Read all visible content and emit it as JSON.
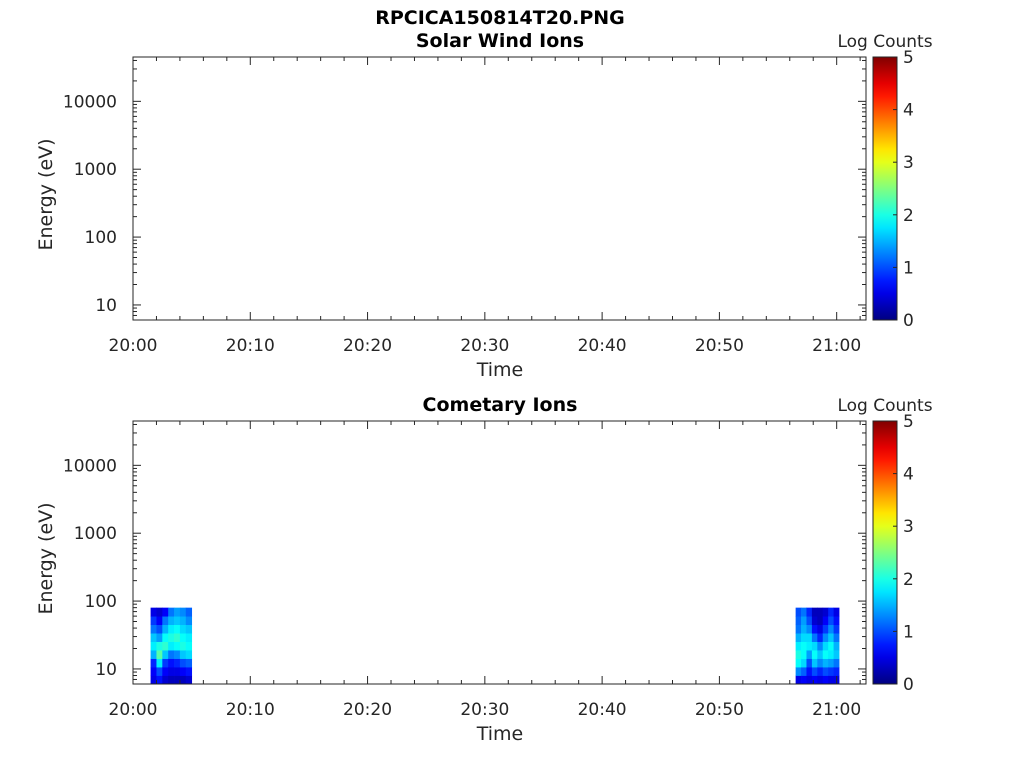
{
  "figure_title": "RPCICA150814T20.PNG",
  "colors": {
    "axis": "#262626",
    "jet_low": "#00008f",
    "jet_high": "#800000"
  },
  "chart_data": [
    {
      "type": "heatmap",
      "title": "Solar Wind Ions",
      "xlabel": "Time",
      "ylabel": "Energy (eV)",
      "y_scale": "log",
      "xlim": [
        "20:00",
        "21:02.5"
      ],
      "ylim": [
        6,
        45000
      ],
      "x_ticks": [
        "20:00",
        "20:10",
        "20:20",
        "20:30",
        "20:40",
        "20:50",
        "21:00"
      ],
      "y_ticks": [
        "10",
        "100",
        "1000",
        "10000"
      ],
      "colorbar": {
        "label": "Log Counts",
        "range": [
          0,
          5
        ],
        "ticks": [
          "0",
          "1",
          "2",
          "3",
          "4",
          "5"
        ],
        "colormap": "jet"
      },
      "blocks": [],
      "grid": false
    },
    {
      "type": "heatmap",
      "title": "Cometary Ions",
      "xlabel": "Time",
      "ylabel": "Energy (eV)",
      "y_scale": "log",
      "xlim": [
        "20:00",
        "21:02.5"
      ],
      "ylim": [
        6,
        45000
      ],
      "x_ticks": [
        "20:00",
        "20:10",
        "20:20",
        "20:30",
        "20:40",
        "20:50",
        "21:00"
      ],
      "y_ticks": [
        "10",
        "100",
        "1000",
        "10000"
      ],
      "colorbar": {
        "label": "Log Counts",
        "range": [
          0,
          5
        ],
        "ticks": [
          "0",
          "1",
          "2",
          "3",
          "4",
          "5"
        ],
        "colormap": "jet"
      },
      "blocks": [
        {
          "t_start": "20:01.5",
          "t_end": "20:05",
          "e_min": 6,
          "e_max": 80,
          "columns": [
            [
              0.5,
              0.6,
              0.8,
              1.5,
              1.8,
              1.6,
              1.2,
              0.9,
              0.5
            ],
            [
              0.7,
              1.0,
              1.8,
              2.3,
              2.0,
              1.4,
              1.0,
              0.6,
              0.4
            ],
            [
              0.4,
              0.6,
              0.9,
              1.6,
              2.1,
              1.9,
              1.5,
              1.2,
              0.6
            ],
            [
              0.3,
              0.5,
              0.7,
              1.2,
              1.8,
              2.0,
              1.8,
              1.5,
              1.2
            ],
            [
              0.3,
              0.5,
              0.8,
              1.3,
              1.9,
              2.1,
              1.9,
              1.6,
              1.4
            ],
            [
              0.3,
              0.6,
              1.0,
              1.6,
              2.0,
              1.9,
              1.7,
              1.5,
              1.3
            ],
            [
              0.4,
              0.7,
              1.1,
              1.7,
              1.9,
              1.8,
              1.6,
              1.3,
              1.1
            ]
          ]
        },
        {
          "t_start": "20:56.5",
          "t_end": "21:00.2",
          "e_min": 6,
          "e_max": 80,
          "columns": [
            [
              0.5,
              1.3,
              1.9,
              2.0,
              1.8,
              1.5,
              1.2,
              1.1,
              1.0
            ],
            [
              0.6,
              1.1,
              1.7,
              1.9,
              1.9,
              1.7,
              1.5,
              1.4,
              1.2
            ],
            [
              0.5,
              0.7,
              1.0,
              1.4,
              1.8,
              1.7,
              1.3,
              1.0,
              0.8
            ],
            [
              0.6,
              1.0,
              1.6,
              1.9,
              1.7,
              1.2,
              0.7,
              0.4,
              0.3
            ],
            [
              0.5,
              0.8,
              1.3,
              1.6,
              1.3,
              0.8,
              0.5,
              0.3,
              0.3
            ],
            [
              0.6,
              1.0,
              1.5,
              1.9,
              1.7,
              1.3,
              0.9,
              0.6,
              0.4
            ],
            [
              0.5,
              0.9,
              1.4,
              1.8,
              1.9,
              1.6,
              1.3,
              1.0,
              0.8
            ],
            [
              0.5,
              0.8,
              1.2,
              1.6,
              1.5,
              1.2,
              0.9,
              0.7,
              0.5
            ]
          ]
        }
      ],
      "grid": false
    }
  ]
}
